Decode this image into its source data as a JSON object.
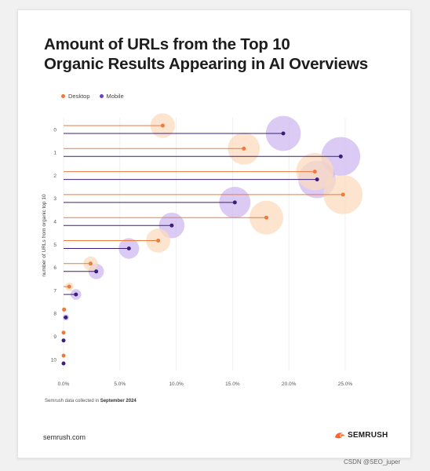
{
  "header": {
    "title_line1": "Amount of URLs from the Top 10",
    "title_line2": "Organic Results Appearing in AI Overviews"
  },
  "footer": {
    "note_prefix": "Semrush data collected in",
    "note_bold": "September 2024",
    "site": "semrush.com",
    "brand": "SEMRUSH",
    "watermark": "CSDN @SEO_juper"
  },
  "colors": {
    "desktop": "#ef7a3c",
    "mobile": "#3b1f7a",
    "desktop_bubble": "#fcd9bc",
    "mobile_bubble": "#cdb7f0",
    "brand": "#ff642d"
  },
  "chart_data": {
    "type": "scatter",
    "title": "Amount of URLs from the Top 10 Organic Results Appearing in AI Overviews",
    "xlabel": "",
    "ylabel": "number of URLs from organic top 10",
    "xlim": [
      0,
      25
    ],
    "x_ticks": [
      "0.0%",
      "5.0%",
      "10.0%",
      "15.0%",
      "20.0%",
      "25.0%"
    ],
    "categories": [
      "0",
      "1",
      "2",
      "3",
      "4",
      "5",
      "6",
      "7",
      "8",
      "9",
      "10"
    ],
    "legend_position": "top-left",
    "grid": true,
    "series": [
      {
        "name": "Desktop",
        "values": [
          8.8,
          16.0,
          22.3,
          24.8,
          18.0,
          8.4,
          2.4,
          0.5,
          0.05,
          0.0,
          0.0
        ]
      },
      {
        "name": "Mobile",
        "values": [
          19.5,
          24.6,
          22.5,
          15.2,
          9.6,
          5.8,
          2.9,
          1.1,
          0.2,
          0.0,
          0.0
        ]
      }
    ]
  }
}
